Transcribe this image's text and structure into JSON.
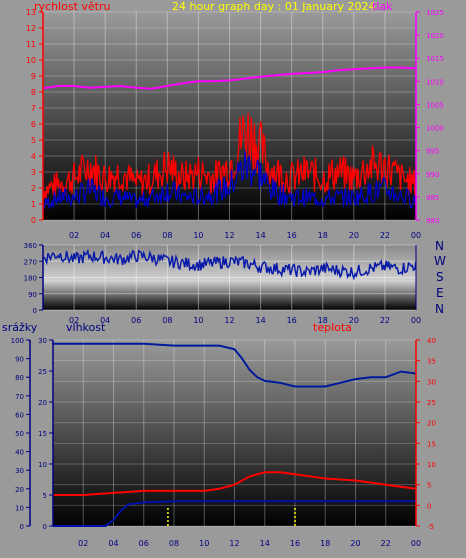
{
  "title": "24 hour graph day : 01 January 2024",
  "direction_letters": [
    "N",
    "W",
    "S",
    "E",
    "N"
  ],
  "colors": {
    "bg": "#9a9a9a",
    "wind": "#ff0000",
    "gust": "#ff0000",
    "wind_avg": "#0000cc",
    "pressure": "#ff00ff",
    "direction": "#0a1aa8",
    "humidity": "#001a99",
    "temperature": "#ff0000",
    "rain": "#0011aa",
    "rain_rate": "#ffff00",
    "title": "#ffff00",
    "grid": "#ffffff"
  },
  "chart_data": [
    {
      "type": "line",
      "name": "wind-pressure",
      "left_label": "rychlost větru",
      "right_label": "tlak",
      "x_ticks": [
        "02",
        "04",
        "06",
        "08",
        "10",
        "12",
        "14",
        "16",
        "18",
        "20",
        "22",
        "00"
      ],
      "y_left_ticks": [
        "0",
        "1",
        "2",
        "3",
        "4",
        "5",
        "6",
        "7",
        "8",
        "9",
        "10",
        "11",
        "12",
        "13"
      ],
      "y_left_range": [
        0,
        13
      ],
      "y_right_ticks": [
        "980",
        "985",
        "990",
        "995",
        "1000",
        "1005",
        "1010",
        "1015",
        "1020",
        "1025"
      ],
      "y_right_range": [
        980,
        1025
      ],
      "pressure": {
        "x": [
          0,
          1,
          2,
          3,
          4,
          5,
          6,
          7,
          8,
          9,
          10,
          11,
          12,
          13,
          14,
          15,
          16,
          17,
          18,
          19,
          20,
          21,
          22,
          23,
          24
        ],
        "y": [
          1008.5,
          1009,
          1009,
          1008.6,
          1008.8,
          1009,
          1008.6,
          1008.4,
          1009,
          1009.6,
          1010,
          1010,
          1010.2,
          1010.6,
          1011,
          1011.3,
          1011.6,
          1011.8,
          1012,
          1012.4,
          1012.6,
          1012.8,
          1013,
          1013,
          1012.8
        ]
      },
      "wind_gust_envelope": {
        "x": [
          0,
          1,
          2,
          3,
          4,
          5,
          6,
          7,
          8,
          9,
          10,
          11,
          12,
          12.5,
          13,
          13.5,
          14,
          14.5,
          15,
          16,
          17,
          18,
          19,
          20,
          21,
          22,
          23,
          24
        ],
        "y": [
          2.5,
          3,
          3.5,
          4.5,
          3.5,
          4,
          3,
          3.5,
          4.5,
          3.5,
          4,
          3.5,
          4.5,
          6,
          7.5,
          7,
          6,
          4.5,
          4,
          3.5,
          4,
          3.5,
          4,
          3.5,
          4.5,
          4.5,
          3.5,
          3
        ]
      },
      "wind_avg": {
        "x": [
          0,
          1,
          2,
          3,
          4,
          5,
          6,
          7,
          8,
          9,
          10,
          11,
          12,
          12.5,
          13,
          13.5,
          14,
          14.5,
          15,
          16,
          17,
          18,
          19,
          20,
          21,
          22,
          23,
          24
        ],
        "y": [
          1,
          1.5,
          1.5,
          2,
          1.5,
          1.5,
          1.2,
          1.5,
          2,
          1.5,
          1.5,
          1.8,
          2.2,
          3,
          3.5,
          3.5,
          3,
          2.2,
          1.8,
          1.5,
          1.5,
          1.4,
          1.5,
          1.5,
          1.8,
          2,
          1.6,
          1.3
        ]
      }
    },
    {
      "type": "line",
      "name": "wind-direction",
      "x_ticks": [
        "02",
        "04",
        "06",
        "08",
        "10",
        "12",
        "14",
        "16",
        "18",
        "20",
        "22",
        "00"
      ],
      "y_ticks": [
        "0",
        "90",
        "180",
        "270",
        "360"
      ],
      "y_range": [
        0,
        360
      ],
      "series": [
        {
          "x": [
            0,
            1,
            2,
            3,
            4,
            5,
            6,
            7,
            8,
            9,
            10,
            11,
            12,
            13,
            14,
            15,
            16,
            17,
            18,
            19,
            20,
            21,
            22,
            23,
            24
          ],
          "y": [
            290,
            310,
            280,
            300,
            290,
            280,
            300,
            290,
            270,
            260,
            250,
            260,
            270,
            260,
            240,
            230,
            220,
            210,
            230,
            220,
            210,
            230,
            240,
            230,
            250
          ]
        }
      ]
    },
    {
      "type": "line",
      "name": "humidity-temperature-rain",
      "left_label_1": "srážky",
      "left_label_2": "vlhkost",
      "right_label": "teplota",
      "x_ticks": [
        "02",
        "04",
        "06",
        "08",
        "10",
        "12",
        "14",
        "16",
        "18",
        "20",
        "22",
        "00"
      ],
      "y_humidity_ticks": [
        "0",
        "10",
        "20",
        "30",
        "40",
        "50",
        "60",
        "70",
        "80",
        "90",
        "100"
      ],
      "y_humidity_range": [
        0,
        100
      ],
      "y_rain_ticks": [
        "0",
        "5",
        "10",
        "15",
        "20",
        "25",
        "30"
      ],
      "y_rain_range": [
        0,
        30
      ],
      "y_temp_ticks": [
        "-5",
        "0",
        "5",
        "10",
        "15",
        "20",
        "25",
        "30",
        "35",
        "40"
      ],
      "y_temp_range": [
        -5,
        40
      ],
      "humidity": {
        "x": [
          0,
          2,
          4,
          6,
          8,
          10,
          11,
          12,
          12.5,
          13,
          13.5,
          14,
          15,
          16,
          17,
          18,
          19,
          20,
          21,
          22,
          23,
          24
        ],
        "y": [
          98,
          98,
          98,
          98,
          97,
          97,
          97,
          95,
          90,
          84,
          80,
          78,
          77,
          75,
          75,
          75,
          77,
          79,
          80,
          80,
          83,
          82
        ]
      },
      "temperature": {
        "x": [
          0,
          2,
          4,
          6,
          8,
          10,
          11,
          12,
          13,
          14,
          15,
          16,
          18,
          20,
          22,
          24
        ],
        "y": [
          2.5,
          2.5,
          3,
          3.5,
          3.5,
          3.5,
          4,
          5,
          7,
          8,
          8,
          7.5,
          6.5,
          6,
          5,
          4
        ]
      },
      "rain": {
        "x": [
          0,
          3.5,
          4,
          4.5,
          5,
          6,
          8,
          10,
          12,
          14,
          16,
          18,
          20,
          22,
          24
        ],
        "y": [
          0,
          0,
          1,
          2.5,
          3.5,
          3.8,
          4,
          4,
          4,
          4,
          4,
          4,
          4,
          4,
          4
        ]
      },
      "rain_rate_marks": [
        7.6,
        16
      ]
    }
  ]
}
